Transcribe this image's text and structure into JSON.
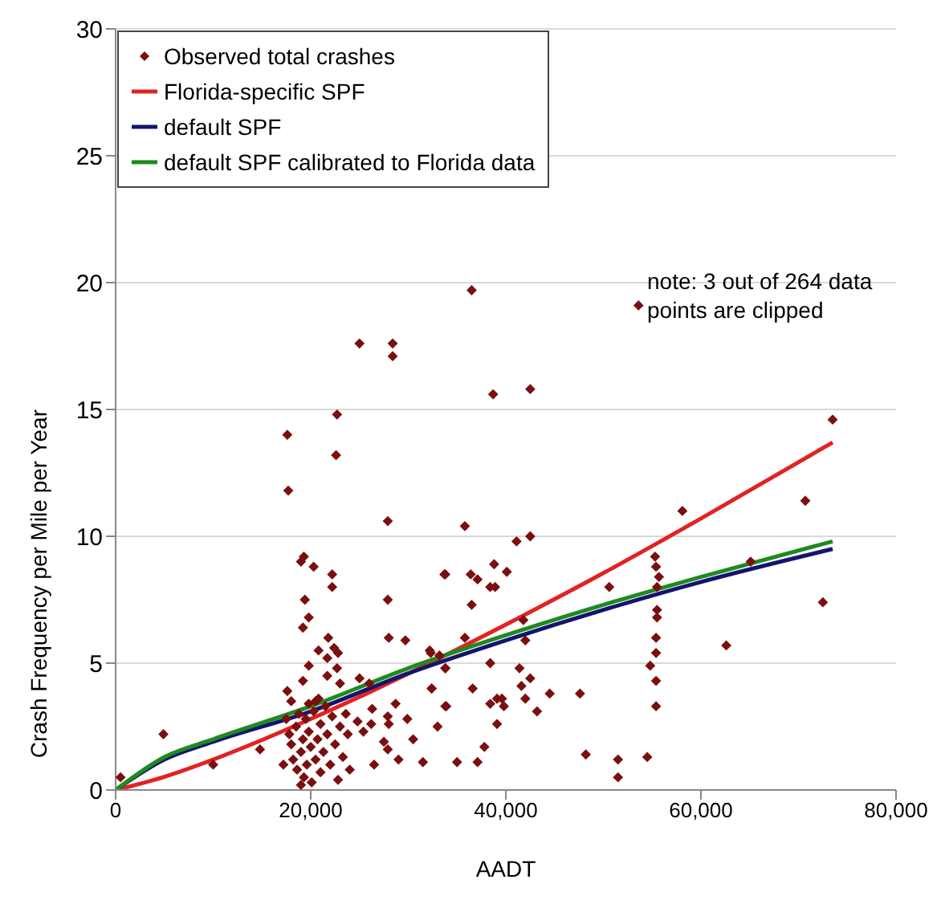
{
  "chart_data": {
    "type": "scatter",
    "xlabel": "AADT",
    "ylabel": "Crash Frequency per Mile per Year",
    "annotations": [
      "note: 3 out of 264 data points are clipped"
    ],
    "xlim": [
      0,
      80000
    ],
    "xticks": [
      0,
      {
        "value": 20000,
        "label": "20,000"
      },
      {
        "value": 40000,
        "label": "40,000"
      },
      {
        "value": 60000,
        "label": "60,000"
      },
      {
        "value": 80000,
        "label": "80,000"
      }
    ],
    "ylim": [
      0,
      30
    ],
    "yticks": [
      0,
      5,
      10,
      15,
      20,
      25,
      30
    ],
    "grid": "y",
    "legend": "top left",
    "series": [
      {
        "name": "Observed total crashes",
        "marker": "diamond",
        "color": "#7b0f0f",
        "x": [
          500,
          4900,
          10000,
          25000,
          28400,
          28400,
          22700,
          17600,
          22600,
          17700,
          36500,
          38700,
          42500,
          58100,
          35800,
          41100,
          42500,
          33800,
          36400,
          37100,
          38800,
          40100,
          38400,
          38900,
          36500,
          35800,
          41800,
          42000,
          50600,
          55300,
          55400,
          55700,
          55500,
          55500,
          55500,
          55400,
          55400,
          54800,
          55400,
          55400,
          54500,
          62600,
          32200,
          33200,
          33800,
          38400,
          41400,
          42500,
          41600,
          42000,
          43200,
          32400,
          36600,
          33900,
          38400,
          39100,
          39600,
          39800,
          39100,
          47600,
          37800,
          48200,
          51500,
          73500,
          70700,
          65100,
          72500,
          53600,
          27900,
          19300,
          19000,
          20300,
          22200,
          22200,
          33700,
          19400,
          27900,
          19800,
          19200,
          28000,
          29700,
          21800,
          20800,
          22400,
          22800,
          21700,
          32300,
          19800,
          22700,
          33800,
          19200,
          21700,
          23000,
          25000,
          26000,
          17600,
          32400,
          33800,
          19800,
          20500,
          26300,
          28700,
          29900,
          27900,
          28000,
          24800,
          25400,
          26200,
          23800,
          14800,
          27900,
          37100,
          35000,
          17500,
          17800,
          18000,
          18200,
          18500,
          18600,
          18800,
          19000,
          19200,
          19300,
          19500,
          19600,
          19800,
          20000,
          20100,
          20300,
          20500,
          20700,
          21000,
          21000,
          21300,
          21500,
          21700,
          22000,
          22200,
          22500,
          22800,
          23000,
          23300,
          23600,
          24000,
          17200,
          18000,
          19000,
          20800,
          26500,
          27500,
          29000,
          30500,
          31500,
          33000,
          44500,
          51500
        ],
        "values": [
          0.5,
          2.2,
          1.0,
          17.6,
          17.6,
          17.1,
          14.8,
          14.0,
          13.2,
          11.8,
          19.7,
          15.6,
          15.8,
          11.0,
          10.4,
          9.8,
          10.0,
          8.5,
          8.5,
          8.3,
          8.9,
          8.6,
          8.0,
          8.0,
          7.3,
          6.0,
          6.7,
          5.9,
          8.0,
          9.2,
          8.8,
          8.4,
          8.0,
          7.1,
          6.8,
          6.0,
          5.4,
          4.9,
          4.3,
          3.3,
          1.3,
          5.7,
          5.5,
          5.3,
          4.8,
          5.0,
          4.8,
          4.4,
          4.1,
          3.6,
          3.1,
          4.0,
          4.0,
          3.3,
          3.4,
          3.6,
          3.6,
          3.3,
          2.6,
          3.8,
          1.7,
          1.4,
          1.2,
          14.6,
          11.4,
          9.0,
          7.4,
          19.1,
          10.6,
          9.2,
          9.0,
          8.8,
          8.5,
          8.0,
          8.5,
          7.5,
          7.5,
          6.8,
          6.4,
          6.0,
          5.9,
          6.0,
          5.5,
          5.6,
          5.4,
          5.2,
          5.4,
          4.9,
          4.8,
          4.8,
          4.3,
          4.5,
          4.2,
          4.4,
          4.2,
          3.9,
          4.0,
          3.3,
          3.4,
          3.5,
          3.2,
          3.4,
          2.8,
          2.9,
          2.6,
          2.7,
          2.3,
          2.6,
          2.2,
          1.6,
          1.6,
          1.1,
          1.1,
          2.8,
          2.2,
          1.8,
          1.2,
          2.5,
          0.8,
          3.0,
          1.5,
          2.0,
          0.5,
          2.8,
          1.0,
          2.3,
          1.7,
          0.3,
          3.1,
          1.2,
          2.0,
          2.6,
          0.7,
          1.5,
          3.3,
          2.2,
          1.0,
          2.9,
          1.8,
          0.4,
          2.5,
          1.3,
          3.0,
          0.8,
          1.0,
          3.5,
          0.2,
          3.6,
          1.0,
          1.9,
          1.2,
          2.0,
          1.1,
          2.5,
          3.8,
          0.5
        ]
      },
      {
        "name": "Florida-specific SPF",
        "type": "line",
        "marker": "none",
        "color": "#e32222",
        "x": [
          0,
          5000,
          10000,
          15000,
          20000,
          25000,
          30000,
          40000,
          50000,
          60000,
          73500
        ],
        "values": [
          0,
          0.52,
          1.2,
          1.97,
          2.8,
          3.67,
          4.59,
          6.52,
          8.55,
          10.7,
          13.7
        ]
      },
      {
        "name": "default SPF",
        "type": "line",
        "marker": "none",
        "color": "#141470",
        "x": [
          0,
          5000,
          10000,
          20000,
          30000,
          40000,
          50000,
          60000,
          73500
        ],
        "values": [
          0,
          1.2,
          1.9,
          3.1,
          4.6,
          5.9,
          7.1,
          8.2,
          9.5
        ]
      },
      {
        "name": "default SPF calibrated to Florida data",
        "type": "line",
        "marker": "none",
        "color": "#1f8a1f",
        "x": [
          0,
          5000,
          10000,
          20000,
          30000,
          40000,
          50000,
          60000,
          73500
        ],
        "values": [
          0,
          1.3,
          2.0,
          3.3,
          4.8,
          6.1,
          7.3,
          8.4,
          9.8
        ]
      }
    ]
  }
}
